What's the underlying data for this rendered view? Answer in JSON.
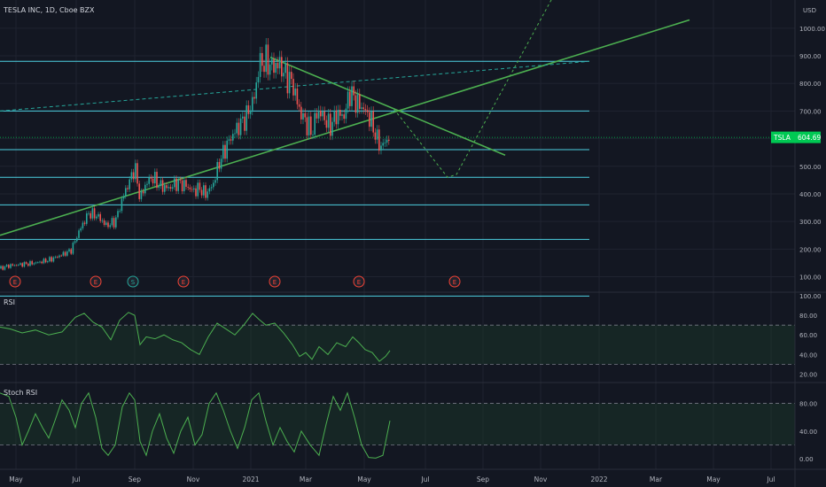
{
  "symbol_header": "TESLA INC, 1D, Cboe BZX",
  "currency": "USD",
  "current_price_tag": {
    "symbol": "TSLA",
    "price": "604.69"
  },
  "colors": {
    "background": "#131722",
    "grid": "#1f2330",
    "axis_text": "#b2b5be",
    "candle_up": "#26a69a",
    "candle_down": "#ef5350",
    "horizontal_levels": "#4dd0e1",
    "trendline": "#4caf50",
    "indicator_line": "#4caf50",
    "price_tag": "#00c853",
    "earnings_marker": "#f44336",
    "split_marker": "#26a69a"
  },
  "chart_data": {
    "type": "candlestick",
    "x_axis_ticks": [
      "May",
      "Jul",
      "Sep",
      "Nov",
      "2021",
      "Mar",
      "May",
      "Jul",
      "Sep",
      "Nov",
      "2022",
      "Mar",
      "May",
      "Jul"
    ],
    "price_axis_ticks": [
      "1000.00",
      "900.00",
      "800.00",
      "700.00",
      "600.00",
      "500.00",
      "400.00",
      "300.00",
      "200.00",
      "100.00"
    ],
    "price_ylim": [
      60,
      1070
    ],
    "horizontal_levels": [
      880,
      700,
      560,
      460,
      360,
      235,
      30
    ],
    "trendlines": [
      {
        "style": "solid",
        "from": [
          0,
          250
        ],
        "to": [
          778,
          1030
        ]
      },
      {
        "style": "solid",
        "from": [
          305,
          895
        ],
        "to": [
          570,
          540
        ]
      },
      {
        "style": "dashed",
        "from": [
          0,
          700
        ],
        "to": [
          665,
          880
        ]
      }
    ],
    "projection_path": [
      [
        440,
        690
      ],
      [
        445,
        705
      ],
      [
        505,
        460
      ],
      [
        515,
        470
      ],
      [
        625,
        1120
      ]
    ],
    "event_markers": [
      {
        "label": "E",
        "type": "earnings",
        "x": 17
      },
      {
        "label": "E",
        "type": "earnings",
        "x": 108
      },
      {
        "label": "S",
        "type": "split",
        "x": 150
      },
      {
        "label": "E",
        "type": "earnings",
        "x": 207
      },
      {
        "label": "E",
        "type": "earnings",
        "x": 310
      },
      {
        "label": "E",
        "type": "earnings",
        "x": 405
      },
      {
        "label": "E",
        "type": "earnings",
        "x": 513
      }
    ],
    "price_path": [
      [
        0,
        130
      ],
      [
        10,
        140
      ],
      [
        25,
        145
      ],
      [
        40,
        150
      ],
      [
        55,
        160
      ],
      [
        70,
        180
      ],
      [
        80,
        195
      ],
      [
        90,
        270
      ],
      [
        100,
        330
      ],
      [
        110,
        320
      ],
      [
        120,
        285
      ],
      [
        130,
        300
      ],
      [
        140,
        400
      ],
      [
        148,
        460
      ],
      [
        152,
        500
      ],
      [
        158,
        380
      ],
      [
        165,
        440
      ],
      [
        172,
        460
      ],
      [
        180,
        430
      ],
      [
        190,
        420
      ],
      [
        200,
        440
      ],
      [
        210,
        430
      ],
      [
        218,
        410
      ],
      [
        225,
        420
      ],
      [
        232,
        400
      ],
      [
        240,
        430
      ],
      [
        248,
        520
      ],
      [
        258,
        590
      ],
      [
        268,
        640
      ],
      [
        278,
        680
      ],
      [
        288,
        760
      ],
      [
        292,
        870
      ],
      [
        300,
        880
      ],
      [
        308,
        860
      ],
      [
        315,
        870
      ],
      [
        322,
        830
      ],
      [
        330,
        800
      ],
      [
        338,
        700
      ],
      [
        345,
        660
      ],
      [
        352,
        620
      ],
      [
        358,
        700
      ],
      [
        365,
        680
      ],
      [
        372,
        640
      ],
      [
        380,
        690
      ],
      [
        388,
        680
      ],
      [
        395,
        770
      ],
      [
        402,
        730
      ],
      [
        410,
        710
      ],
      [
        418,
        670
      ],
      [
        425,
        600
      ],
      [
        430,
        570
      ],
      [
        435,
        590
      ],
      [
        440,
        610
      ]
    ],
    "rsi": {
      "label": "RSI",
      "ylim": [
        15,
        100
      ],
      "ticks": [
        "100.00",
        "80.00",
        "60.00",
        "40.00",
        "20.00"
      ],
      "band_upper": 70,
      "band_lower": 30,
      "values": [
        [
          0,
          68
        ],
        [
          12,
          66
        ],
        [
          25,
          62
        ],
        [
          40,
          65
        ],
        [
          55,
          60
        ],
        [
          70,
          63
        ],
        [
          85,
          78
        ],
        [
          95,
          82
        ],
        [
          105,
          73
        ],
        [
          115,
          68
        ],
        [
          125,
          55
        ],
        [
          135,
          75
        ],
        [
          145,
          83
        ],
        [
          152,
          80
        ],
        [
          158,
          50
        ],
        [
          165,
          58
        ],
        [
          175,
          56
        ],
        [
          185,
          60
        ],
        [
          195,
          55
        ],
        [
          205,
          52
        ],
        [
          215,
          45
        ],
        [
          225,
          40
        ],
        [
          235,
          58
        ],
        [
          245,
          72
        ],
        [
          255,
          66
        ],
        [
          265,
          60
        ],
        [
          275,
          70
        ],
        [
          285,
          82
        ],
        [
          292,
          76
        ],
        [
          300,
          70
        ],
        [
          310,
          72
        ],
        [
          320,
          62
        ],
        [
          330,
          50
        ],
        [
          338,
          38
        ],
        [
          345,
          42
        ],
        [
          352,
          35
        ],
        [
          360,
          48
        ],
        [
          370,
          40
        ],
        [
          380,
          52
        ],
        [
          390,
          48
        ],
        [
          398,
          58
        ],
        [
          405,
          52
        ],
        [
          412,
          45
        ],
        [
          420,
          42
        ],
        [
          428,
          33
        ],
        [
          435,
          38
        ],
        [
          440,
          44
        ]
      ]
    },
    "stoch_rsi": {
      "label": "Stoch RSI",
      "ylim": [
        -10,
        105
      ],
      "ticks": [
        "80.00",
        "40.00",
        "0.00"
      ],
      "band_upper": 80,
      "band_lower": 20,
      "values": [
        [
          0,
          95
        ],
        [
          10,
          90
        ],
        [
          18,
          60
        ],
        [
          25,
          20
        ],
        [
          32,
          40
        ],
        [
          40,
          65
        ],
        [
          48,
          45
        ],
        [
          55,
          30
        ],
        [
          62,
          55
        ],
        [
          70,
          85
        ],
        [
          78,
          70
        ],
        [
          85,
          45
        ],
        [
          92,
          80
        ],
        [
          100,
          95
        ],
        [
          108,
          60
        ],
        [
          115,
          15
        ],
        [
          122,
          5
        ],
        [
          130,
          20
        ],
        [
          138,
          75
        ],
        [
          146,
          95
        ],
        [
          152,
          85
        ],
        [
          158,
          25
        ],
        [
          165,
          5
        ],
        [
          172,
          40
        ],
        [
          180,
          65
        ],
        [
          188,
          30
        ],
        [
          196,
          8
        ],
        [
          204,
          40
        ],
        [
          212,
          60
        ],
        [
          220,
          20
        ],
        [
          228,
          35
        ],
        [
          236,
          80
        ],
        [
          244,
          95
        ],
        [
          252,
          70
        ],
        [
          260,
          40
        ],
        [
          268,
          15
        ],
        [
          276,
          45
        ],
        [
          284,
          85
        ],
        [
          292,
          95
        ],
        [
          300,
          55
        ],
        [
          308,
          20
        ],
        [
          316,
          45
        ],
        [
          324,
          25
        ],
        [
          332,
          10
        ],
        [
          340,
          40
        ],
        [
          350,
          20
        ],
        [
          360,
          5
        ],
        [
          368,
          50
        ],
        [
          376,
          90
        ],
        [
          384,
          70
        ],
        [
          392,
          95
        ],
        [
          400,
          60
        ],
        [
          408,
          20
        ],
        [
          416,
          2
        ],
        [
          424,
          1
        ],
        [
          432,
          5
        ],
        [
          440,
          55
        ]
      ]
    }
  }
}
